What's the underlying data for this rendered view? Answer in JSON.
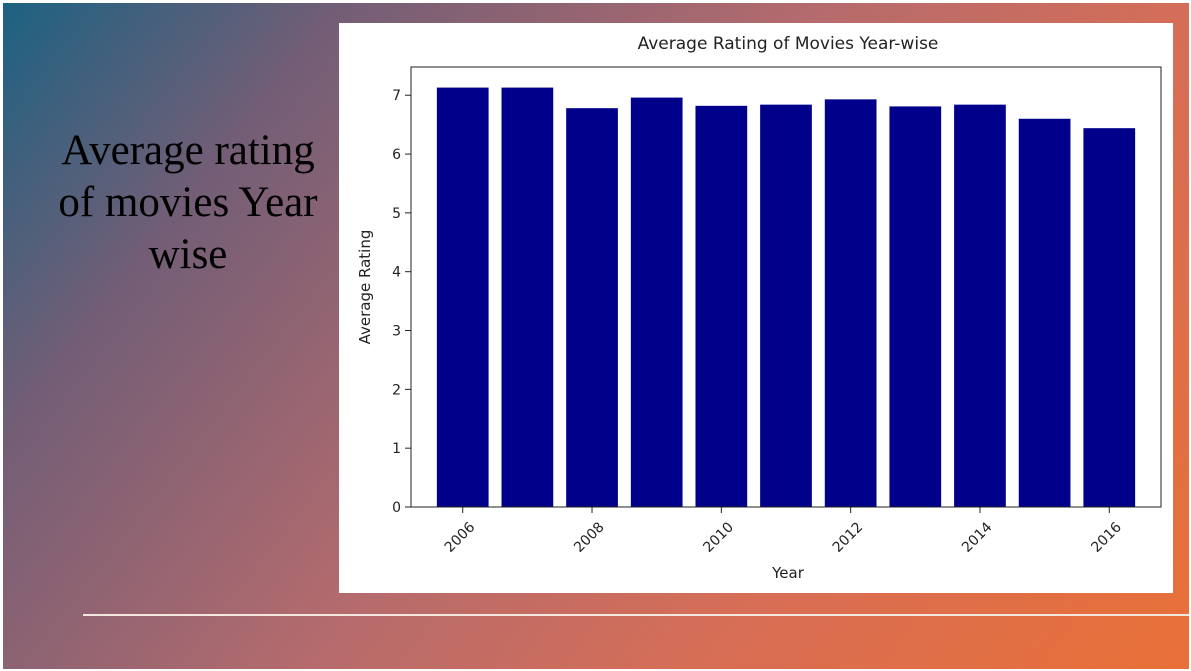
{
  "slide": {
    "title": "Average rating of movies Year wise"
  },
  "chart_data": {
    "type": "bar",
    "title": "Average Rating of Movies Year-wise",
    "xlabel": "Year",
    "ylabel": "Average Rating",
    "categories": [
      2006,
      2007,
      2008,
      2009,
      2010,
      2011,
      2012,
      2013,
      2014,
      2015,
      2016
    ],
    "values": [
      7.13,
      7.13,
      6.78,
      6.96,
      6.82,
      6.84,
      6.93,
      6.81,
      6.84,
      6.6,
      6.44
    ],
    "x_ticks": [
      2006,
      2008,
      2010,
      2012,
      2014,
      2016
    ],
    "y_ticks": [
      0,
      1,
      2,
      3,
      4,
      5,
      6,
      7
    ],
    "ylim": [
      0,
      7.48
    ],
    "xlim": [
      2005.2,
      2016.8
    ],
    "bar_color": "#00008b",
    "grid": false,
    "legend": "none"
  }
}
